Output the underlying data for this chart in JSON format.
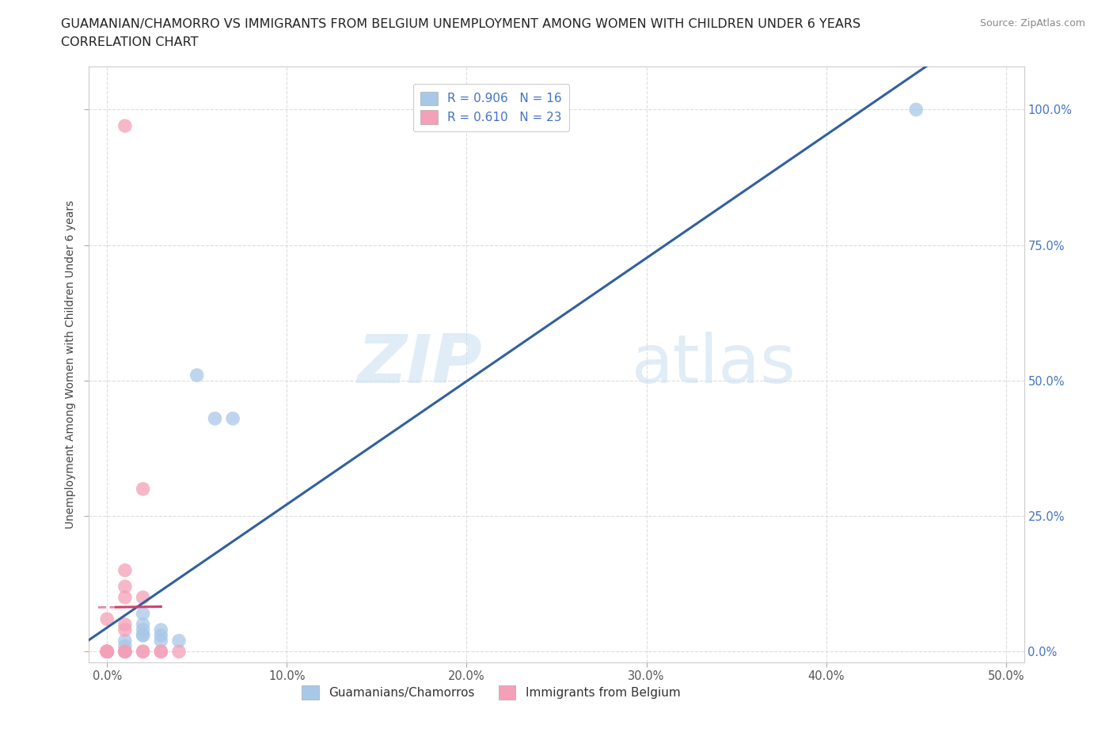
{
  "title_line1": "GUAMANIAN/CHAMORRO VS IMMIGRANTS FROM BELGIUM UNEMPLOYMENT AMONG WOMEN WITH CHILDREN UNDER 6 YEARS",
  "title_line2": "CORRELATION CHART",
  "source_text": "Source: ZipAtlas.com",
  "ylabel": "Unemployment Among Women with Children Under 6 years",
  "xlim": [
    -1,
    51
  ],
  "ylim": [
    -2,
    108
  ],
  "xtick_vals": [
    0,
    10,
    20,
    30,
    40,
    50
  ],
  "xtick_labels": [
    "0.0%",
    "10.0%",
    "20.0%",
    "30.0%",
    "40.0%",
    "50.0%"
  ],
  "ytick_vals": [
    0,
    25,
    50,
    75,
    100
  ],
  "ytick_labels": [
    "0.0%",
    "25.0%",
    "50.0%",
    "75.0%",
    "100.0%"
  ],
  "watermark_zip": "ZIP",
  "watermark_atlas": "atlas",
  "blue_scatter_color": "#a8c8e8",
  "pink_scatter_color": "#f4a0b8",
  "blue_line_color": "#3060a0",
  "pink_line_color": "#d04070",
  "right_tick_color": "#4472c4",
  "R_blue": "0.906",
  "N_blue": "16",
  "R_pink": "0.610",
  "N_pink": "23",
  "legend_label_blue": "Guamanians/Chamorros",
  "legend_label_pink": "Immigrants from Belgium",
  "guamanian_x": [
    1,
    1,
    1,
    2,
    2,
    2,
    2,
    2,
    3,
    3,
    3,
    4,
    5,
    6,
    7,
    45
  ],
  "guamanian_y": [
    0,
    1,
    2,
    3,
    3,
    4,
    5,
    7,
    2,
    3,
    4,
    2,
    51,
    43,
    43,
    100
  ],
  "belgium_x": [
    0,
    0,
    0,
    0,
    0,
    0,
    0,
    1,
    1,
    1,
    1,
    1,
    1,
    1,
    1,
    1,
    2,
    2,
    2,
    2,
    3,
    3,
    4
  ],
  "belgium_y": [
    0,
    0,
    0,
    0,
    0,
    0,
    6,
    0,
    0,
    0,
    4,
    5,
    10,
    12,
    15,
    97,
    0,
    0,
    10,
    30,
    0,
    0,
    0
  ],
  "bg_color": "#ffffff",
  "grid_color": "#dddddd",
  "title_fontsize": 11.5,
  "axis_label_fontsize": 10,
  "tick_fontsize": 10.5,
  "legend_fontsize": 11
}
